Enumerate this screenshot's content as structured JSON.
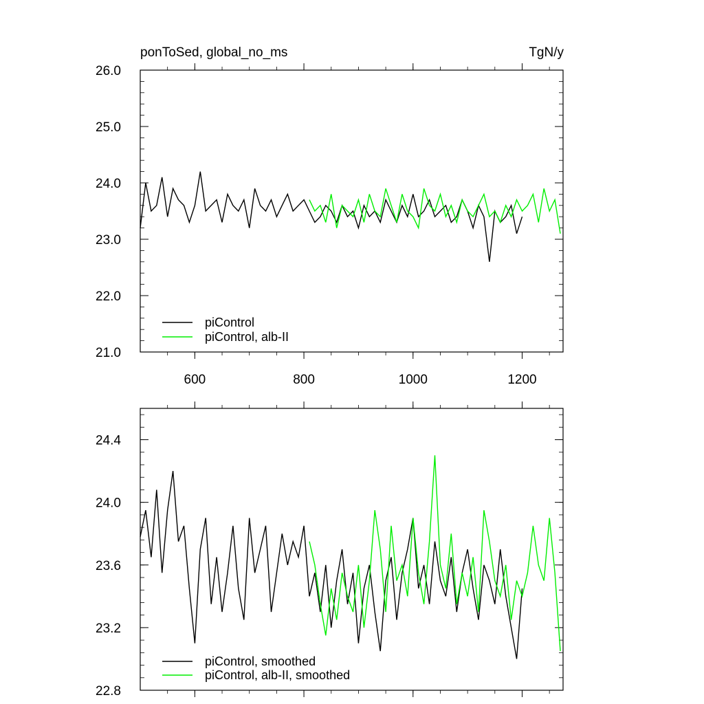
{
  "chart_data": [
    {
      "type": "line",
      "title_left": "ponToSed, global_no_ms",
      "title_right": "TgN/y",
      "xlim": [
        500,
        1275
      ],
      "ylim": [
        21.0,
        26.0
      ],
      "xticks": [
        600,
        800,
        1000,
        1200
      ],
      "xtick_labels": [
        "600",
        "800",
        "1000",
        "1200"
      ],
      "yticks": [
        21.0,
        22.0,
        23.0,
        24.0,
        25.0,
        26.0
      ],
      "ytick_labels": [
        "21.0",
        "22.0",
        "23.0",
        "24.0",
        "25.0",
        "26.0"
      ],
      "legend_position": "bottom-left",
      "series": [
        {
          "name": "piControl",
          "color": "#000000",
          "x": [
            500,
            510,
            520,
            530,
            540,
            550,
            560,
            570,
            580,
            590,
            600,
            610,
            620,
            630,
            640,
            650,
            660,
            670,
            680,
            690,
            700,
            710,
            720,
            730,
            740,
            750,
            760,
            770,
            780,
            790,
            800,
            810,
            820,
            830,
            840,
            850,
            860,
            870,
            880,
            890,
            900,
            910,
            920,
            930,
            940,
            950,
            960,
            970,
            980,
            990,
            1000,
            1010,
            1020,
            1030,
            1040,
            1050,
            1060,
            1070,
            1080,
            1090,
            1100,
            1110,
            1120,
            1130,
            1140,
            1150,
            1160,
            1170,
            1180,
            1190,
            1200
          ],
          "values": [
            23.2,
            24.0,
            23.5,
            23.6,
            24.1,
            23.4,
            23.9,
            23.7,
            23.6,
            23.3,
            23.6,
            24.2,
            23.5,
            23.6,
            23.7,
            23.3,
            23.8,
            23.6,
            23.5,
            23.7,
            23.2,
            23.9,
            23.6,
            23.5,
            23.7,
            23.4,
            23.6,
            23.8,
            23.5,
            23.6,
            23.7,
            23.5,
            23.3,
            23.4,
            23.6,
            23.5,
            23.3,
            23.6,
            23.4,
            23.5,
            23.2,
            23.6,
            23.4,
            23.5,
            23.3,
            23.7,
            23.5,
            23.3,
            23.6,
            23.4,
            23.8,
            23.4,
            23.5,
            23.7,
            23.4,
            23.5,
            23.6,
            23.3,
            23.4,
            23.7,
            23.5,
            23.2,
            23.6,
            23.4,
            22.6,
            23.5,
            23.3,
            23.4,
            23.6,
            23.1,
            23.4
          ]
        },
        {
          "name": "piControl, alb-II",
          "color": "#00ee00",
          "x": [
            810,
            820,
            830,
            840,
            850,
            860,
            870,
            880,
            890,
            900,
            910,
            920,
            930,
            940,
            950,
            960,
            970,
            980,
            990,
            1000,
            1010,
            1020,
            1030,
            1040,
            1050,
            1060,
            1070,
            1080,
            1090,
            1100,
            1110,
            1120,
            1130,
            1140,
            1150,
            1160,
            1170,
            1180,
            1190,
            1200,
            1210,
            1220,
            1230,
            1240,
            1250,
            1260,
            1270
          ],
          "values": [
            23.7,
            23.5,
            23.6,
            23.3,
            23.8,
            23.2,
            23.6,
            23.5,
            23.4,
            23.7,
            23.3,
            23.8,
            23.5,
            23.4,
            23.9,
            23.6,
            23.3,
            23.8,
            23.5,
            23.4,
            23.2,
            23.9,
            23.6,
            23.5,
            23.8,
            23.4,
            23.6,
            23.3,
            23.7,
            23.5,
            23.4,
            23.6,
            23.8,
            23.4,
            23.5,
            23.3,
            23.6,
            23.4,
            23.7,
            23.5,
            23.6,
            23.8,
            23.3,
            23.9,
            23.5,
            23.7,
            23.1
          ]
        }
      ]
    },
    {
      "type": "line",
      "xlim": [
        500,
        1275
      ],
      "ylim": [
        22.8,
        24.6
      ],
      "xticks": [
        600,
        800,
        1000,
        1200
      ],
      "yticks": [
        22.8,
        23.2,
        23.6,
        24.0,
        24.4
      ],
      "ytick_labels": [
        "22.8",
        "23.2",
        "23.6",
        "24.0",
        "24.4"
      ],
      "legend_position": "bottom-left",
      "series": [
        {
          "name": "piControl, smoothed",
          "color": "#000000",
          "x": [
            500,
            510,
            520,
            530,
            540,
            550,
            560,
            570,
            580,
            590,
            600,
            610,
            620,
            630,
            640,
            650,
            660,
            670,
            680,
            690,
            700,
            710,
            720,
            730,
            740,
            750,
            760,
            770,
            780,
            790,
            800,
            810,
            820,
            830,
            840,
            850,
            860,
            870,
            880,
            890,
            900,
            910,
            920,
            930,
            940,
            950,
            960,
            970,
            980,
            990,
            1000,
            1010,
            1020,
            1030,
            1040,
            1050,
            1060,
            1070,
            1080,
            1090,
            1100,
            1110,
            1120,
            1130,
            1140,
            1150,
            1160,
            1170,
            1180,
            1190,
            1200
          ],
          "values": [
            23.78,
            23.95,
            23.65,
            24.08,
            23.55,
            23.95,
            24.2,
            23.75,
            23.85,
            23.45,
            23.1,
            23.7,
            23.9,
            23.35,
            23.65,
            23.3,
            23.55,
            23.85,
            23.45,
            23.25,
            23.9,
            23.55,
            23.7,
            23.85,
            23.3,
            23.55,
            23.8,
            23.6,
            23.75,
            23.65,
            23.85,
            23.4,
            23.55,
            23.3,
            23.6,
            23.2,
            23.5,
            23.7,
            23.35,
            23.55,
            23.1,
            23.45,
            23.6,
            23.3,
            23.05,
            23.5,
            23.65,
            23.25,
            23.55,
            23.7,
            23.9,
            23.45,
            23.6,
            23.35,
            23.75,
            23.5,
            23.4,
            23.65,
            23.3,
            23.55,
            23.7,
            23.45,
            23.25,
            23.6,
            23.5,
            23.35,
            23.7,
            23.4,
            23.2,
            23.0,
            23.45
          ]
        },
        {
          "name": "piControl, alb-II, smoothed",
          "color": "#00ee00",
          "x": [
            810,
            820,
            830,
            840,
            850,
            860,
            870,
            880,
            890,
            900,
            910,
            920,
            930,
            940,
            950,
            960,
            970,
            980,
            990,
            1000,
            1010,
            1020,
            1030,
            1040,
            1050,
            1060,
            1070,
            1080,
            1090,
            1100,
            1110,
            1120,
            1130,
            1140,
            1150,
            1160,
            1170,
            1180,
            1190,
            1200,
            1210,
            1220,
            1230,
            1240,
            1250,
            1260,
            1270
          ],
          "values": [
            23.75,
            23.6,
            23.35,
            23.15,
            23.45,
            23.25,
            23.55,
            23.4,
            23.3,
            23.6,
            23.2,
            23.5,
            23.95,
            23.7,
            23.3,
            23.85,
            23.5,
            23.6,
            23.4,
            23.9,
            23.55,
            23.35,
            23.75,
            24.3,
            23.6,
            23.45,
            23.8,
            23.35,
            23.55,
            23.4,
            23.65,
            23.3,
            23.95,
            23.75,
            23.5,
            23.4,
            23.6,
            23.25,
            23.5,
            23.4,
            23.55,
            23.85,
            23.6,
            23.5,
            23.9,
            23.55,
            23.05
          ]
        }
      ]
    }
  ]
}
